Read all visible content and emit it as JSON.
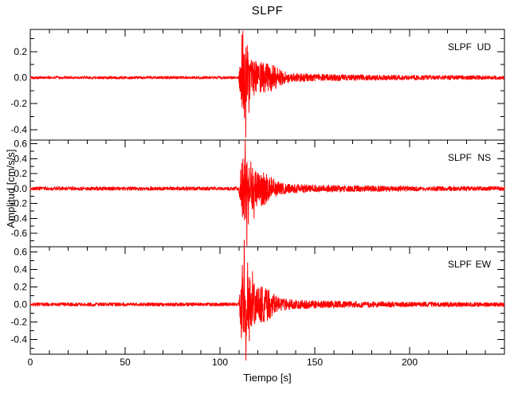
{
  "chart_data": {
    "type": "line",
    "title": "SLPF",
    "xlabel": "Tiempo [s]",
    "ylabel": "Amplitud [cm/s/s]",
    "trace_color": "#ff0000",
    "axis_color": "#000000",
    "background_color": "#ffffff",
    "x_axis": {
      "lim": [
        0,
        250
      ],
      "major_tick_values": [
        0,
        50,
        100,
        150,
        200,
        250
      ],
      "minor_step": 10,
      "tick_labels": [
        {
          "value": 0,
          "label": "0"
        },
        {
          "value": 50,
          "label": "50"
        },
        {
          "value": 100,
          "label": "100"
        },
        {
          "value": 150,
          "label": "150"
        },
        {
          "value": 200,
          "label": "200"
        }
      ]
    },
    "panels": [
      {
        "station": "SLPF",
        "component": "UD",
        "ylim": [
          -0.48,
          0.37
        ],
        "y_minor_step": 0.1,
        "yticks": [
          {
            "value": 0.2,
            "label": "0.2"
          },
          {
            "value": 0.0,
            "label": "0.0"
          },
          {
            "value": -0.2,
            "label": "-0.2"
          },
          {
            "value": -0.4,
            "label": "-0.4"
          }
        ],
        "waveform": {
          "seed": 101,
          "noise_amp": 0.012,
          "onset": 109.8,
          "rise": 1.6,
          "peak_time": 112.3,
          "peak_env": 0.24,
          "tau": 6.5,
          "bump_time": 126,
          "bump_amp": 0.05,
          "bump_sigma": 4,
          "coda_amp": 0.03,
          "coda_tau": 70,
          "spikes": [
            {
              "t": 111.6,
              "v": 0.33
            },
            {
              "t": 112.1,
              "v": 0.36
            },
            {
              "t": 112.9,
              "v": -0.31
            },
            {
              "t": 113.6,
              "v": -0.46
            },
            {
              "t": 114.4,
              "v": 0.25
            },
            {
              "t": 115.3,
              "v": -0.27
            }
          ]
        }
      },
      {
        "station": "SLPF",
        "component": "NS",
        "ylim": [
          -0.78,
          0.65
        ],
        "y_minor_step": 0.1,
        "yticks": [
          {
            "value": 0.6,
            "label": "0.6"
          },
          {
            "value": 0.4,
            "label": "0.4"
          },
          {
            "value": 0.2,
            "label": "0.2"
          },
          {
            "value": 0.0,
            "label": "-0.0"
          },
          {
            "value": -0.2,
            "label": "-0.2"
          },
          {
            "value": -0.4,
            "label": "-0.4"
          },
          {
            "value": -0.6,
            "label": "-0.6"
          }
        ],
        "waveform": {
          "seed": 202,
          "noise_amp": 0.027,
          "onset": 109.9,
          "rise": 1.6,
          "peak_time": 112.8,
          "peak_env": 0.36,
          "tau": 6.0,
          "bump_time": 123,
          "bump_amp": 0.1,
          "bump_sigma": 4,
          "coda_amp": 0.05,
          "coda_tau": 60,
          "spikes": [
            {
              "t": 112.1,
              "v": 0.4
            },
            {
              "t": 113.3,
              "v": 0.65
            },
            {
              "t": 114.2,
              "v": -0.77
            },
            {
              "t": 115.0,
              "v": -0.48
            },
            {
              "t": 116.3,
              "v": 0.36
            },
            {
              "t": 118.0,
              "v": -0.4
            }
          ]
        }
      },
      {
        "station": "SLPF",
        "component": "EW",
        "ylim": [
          -0.57,
          0.66
        ],
        "y_minor_step": 0.1,
        "yticks": [
          {
            "value": 0.6,
            "label": "0.6"
          },
          {
            "value": 0.4,
            "label": "0.4"
          },
          {
            "value": 0.2,
            "label": "0.2"
          },
          {
            "value": 0.0,
            "label": "0.0"
          },
          {
            "value": -0.2,
            "label": "-0.2"
          },
          {
            "value": -0.4,
            "label": "-0.4"
          }
        ],
        "waveform": {
          "seed": 303,
          "noise_amp": 0.022,
          "onset": 109.8,
          "rise": 1.6,
          "peak_time": 112.6,
          "peak_env": 0.4,
          "tau": 6.0,
          "bump_time": 124,
          "bump_amp": 0.08,
          "bump_sigma": 4,
          "coda_amp": 0.045,
          "coda_tau": 60,
          "spikes": [
            {
              "t": 111.8,
              "v": 0.45
            },
            {
              "t": 112.8,
              "v": 0.74
            },
            {
              "t": 113.7,
              "v": -0.64
            },
            {
              "t": 114.6,
              "v": 0.48
            },
            {
              "t": 115.5,
              "v": -0.42
            },
            {
              "t": 117.2,
              "v": 0.38
            }
          ]
        }
      }
    ]
  }
}
